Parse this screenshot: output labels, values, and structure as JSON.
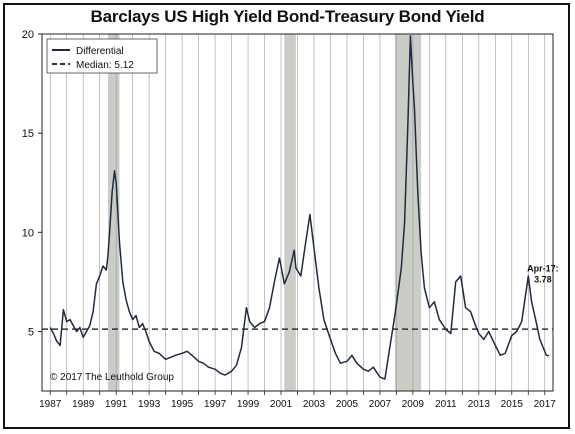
{
  "chart_data": {
    "type": "line",
    "title": "Barclays US High Yield Bond-Treasury Bond Yield",
    "xlabel": "",
    "ylabel": "",
    "xlim": [
      1986.5,
      2017.5
    ],
    "ylim": [
      2,
      20
    ],
    "x_ticks": [
      1987,
      1989,
      1991,
      1993,
      1995,
      1997,
      1999,
      2001,
      2003,
      2005,
      2007,
      2009,
      2011,
      2013,
      2015,
      2017
    ],
    "y_ticks": [
      5,
      10,
      15,
      20
    ],
    "grid": "vertical",
    "legend": {
      "placement": "top-left",
      "entries": [
        {
          "label": "Differential",
          "style": "solid",
          "color": "#1e2a44"
        },
        {
          "label": "Median: 5.12",
          "style": "dashed",
          "color": "#333333"
        }
      ]
    },
    "median": 5.12,
    "recessions": [
      [
        1990.5,
        1991.2
      ],
      [
        2001.2,
        2001.9
      ],
      [
        2007.9,
        2009.5
      ]
    ],
    "recession_color": "#c9cdc6",
    "series": [
      {
        "name": "Differential",
        "color": "#1e2a44",
        "points": [
          [
            1987.0,
            5.2
          ],
          [
            1987.2,
            4.9
          ],
          [
            1987.4,
            4.5
          ],
          [
            1987.6,
            4.3
          ],
          [
            1987.8,
            6.1
          ],
          [
            1988.0,
            5.5
          ],
          [
            1988.2,
            5.6
          ],
          [
            1988.4,
            5.3
          ],
          [
            1988.6,
            5.0
          ],
          [
            1988.8,
            5.2
          ],
          [
            1989.0,
            4.7
          ],
          [
            1989.2,
            5.0
          ],
          [
            1989.4,
            5.3
          ],
          [
            1989.6,
            6.0
          ],
          [
            1989.8,
            7.4
          ],
          [
            1990.0,
            7.8
          ],
          [
            1990.2,
            8.3
          ],
          [
            1990.4,
            8.1
          ],
          [
            1990.5,
            8.8
          ],
          [
            1990.6,
            10.0
          ],
          [
            1990.75,
            12.0
          ],
          [
            1990.9,
            13.1
          ],
          [
            1991.0,
            12.5
          ],
          [
            1991.2,
            9.5
          ],
          [
            1991.4,
            7.5
          ],
          [
            1991.6,
            6.6
          ],
          [
            1991.8,
            6.0
          ],
          [
            1992.0,
            5.6
          ],
          [
            1992.2,
            5.8
          ],
          [
            1992.4,
            5.2
          ],
          [
            1992.6,
            5.4
          ],
          [
            1992.8,
            5.0
          ],
          [
            1993.0,
            4.5
          ],
          [
            1993.3,
            4.0
          ],
          [
            1993.6,
            3.9
          ],
          [
            1994.0,
            3.6
          ],
          [
            1994.3,
            3.7
          ],
          [
            1994.6,
            3.8
          ],
          [
            1995.0,
            3.9
          ],
          [
            1995.3,
            4.0
          ],
          [
            1995.6,
            3.8
          ],
          [
            1996.0,
            3.5
          ],
          [
            1996.3,
            3.4
          ],
          [
            1996.6,
            3.2
          ],
          [
            1997.0,
            3.1
          ],
          [
            1997.3,
            2.9
          ],
          [
            1997.6,
            2.8
          ],
          [
            1998.0,
            3.0
          ],
          [
            1998.3,
            3.3
          ],
          [
            1998.6,
            4.2
          ],
          [
            1998.9,
            6.2
          ],
          [
            1999.1,
            5.5
          ],
          [
            1999.4,
            5.2
          ],
          [
            1999.7,
            5.4
          ],
          [
            2000.0,
            5.5
          ],
          [
            2000.3,
            6.2
          ],
          [
            2000.6,
            7.5
          ],
          [
            2000.9,
            8.7
          ],
          [
            2001.0,
            8.3
          ],
          [
            2001.2,
            7.4
          ],
          [
            2001.5,
            8.0
          ],
          [
            2001.8,
            9.1
          ],
          [
            2001.9,
            8.2
          ],
          [
            2002.2,
            7.8
          ],
          [
            2002.5,
            9.5
          ],
          [
            2002.75,
            10.9
          ],
          [
            2003.0,
            9.2
          ],
          [
            2003.3,
            7.2
          ],
          [
            2003.6,
            5.6
          ],
          [
            2004.0,
            4.6
          ],
          [
            2004.3,
            3.9
          ],
          [
            2004.6,
            3.4
          ],
          [
            2005.0,
            3.5
          ],
          [
            2005.3,
            3.8
          ],
          [
            2005.6,
            3.4
          ],
          [
            2006.0,
            3.1
          ],
          [
            2006.3,
            3.0
          ],
          [
            2006.6,
            3.2
          ],
          [
            2007.0,
            2.7
          ],
          [
            2007.3,
            2.6
          ],
          [
            2007.6,
            4.2
          ],
          [
            2007.9,
            5.8
          ],
          [
            2008.1,
            7.0
          ],
          [
            2008.3,
            8.2
          ],
          [
            2008.5,
            10.5
          ],
          [
            2008.7,
            15.5
          ],
          [
            2008.85,
            19.9
          ],
          [
            2009.0,
            17.5
          ],
          [
            2009.1,
            16.2
          ],
          [
            2009.3,
            12.0
          ],
          [
            2009.5,
            9.0
          ],
          [
            2009.7,
            7.2
          ],
          [
            2010.0,
            6.2
          ],
          [
            2010.3,
            6.5
          ],
          [
            2010.6,
            5.6
          ],
          [
            2011.0,
            5.1
          ],
          [
            2011.3,
            4.9
          ],
          [
            2011.6,
            7.5
          ],
          [
            2011.9,
            7.8
          ],
          [
            2012.2,
            6.2
          ],
          [
            2012.5,
            6.0
          ],
          [
            2012.8,
            5.3
          ],
          [
            2013.0,
            4.9
          ],
          [
            2013.3,
            4.6
          ],
          [
            2013.6,
            5.0
          ],
          [
            2014.0,
            4.3
          ],
          [
            2014.3,
            3.8
          ],
          [
            2014.6,
            3.9
          ],
          [
            2015.0,
            4.8
          ],
          [
            2015.3,
            5.0
          ],
          [
            2015.6,
            5.5
          ],
          [
            2015.9,
            7.2
          ],
          [
            2016.0,
            7.8
          ],
          [
            2016.2,
            6.5
          ],
          [
            2016.5,
            5.4
          ],
          [
            2016.7,
            4.6
          ],
          [
            2016.9,
            4.2
          ],
          [
            2017.1,
            3.8
          ],
          [
            2017.25,
            3.78
          ]
        ]
      }
    ],
    "annotations": [
      {
        "text": "Apr-17:",
        "x": 2017.25,
        "y": 3.78
      },
      {
        "text": "3.78",
        "x": 2017.25,
        "y": 3.78
      }
    ],
    "footnote": "© 2017 The Leuthold Group"
  }
}
